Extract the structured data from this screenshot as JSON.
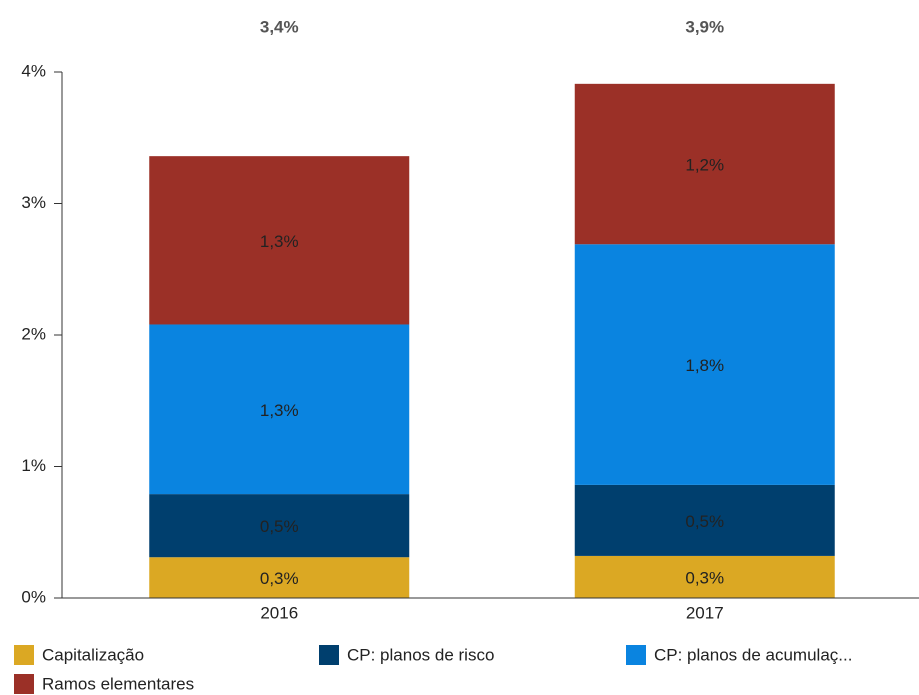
{
  "chart_data": {
    "type": "stacked_bar",
    "categories": [
      "2016",
      "2017"
    ],
    "totals": [
      "3,4%",
      "3,9%"
    ],
    "series": [
      {
        "name": "Capitalização",
        "color": "#dba823",
        "values": [
          0.31,
          0.32
        ],
        "value_labels": [
          "0,3%",
          "0,3%"
        ]
      },
      {
        "name": "CP: planos de risco",
        "color": "#003f6e",
        "values": [
          0.48,
          0.54
        ],
        "value_labels": [
          "0,5%",
          "0,5%"
        ]
      },
      {
        "name": "CP: planos de acumulaç...",
        "color": "#0a84e0",
        "values": [
          1.29,
          1.83
        ],
        "value_labels": [
          "1,3%",
          "1,8%"
        ]
      },
      {
        "name": "Ramos elementares",
        "color": "#9b3027",
        "values": [
          1.28,
          1.22
        ],
        "value_labels": [
          "1,3%",
          "1,2%"
        ]
      }
    ],
    "ylim": [
      0,
      4
    ],
    "yticks": [
      {
        "value": 0,
        "label": "0%"
      },
      {
        "value": 1,
        "label": "1%"
      },
      {
        "value": 2,
        "label": "2%"
      },
      {
        "value": 3,
        "label": "3%"
      },
      {
        "value": 4,
        "label": "4%"
      }
    ]
  }
}
